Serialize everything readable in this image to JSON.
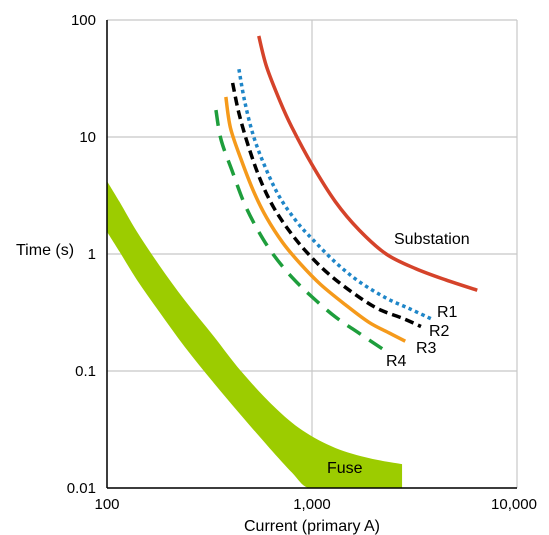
{
  "chart_data": {
    "type": "line",
    "title": "",
    "xlabel": "Current (primary A)",
    "ylabel": "Time (s)",
    "xscale": "log",
    "yscale": "log",
    "xlim": [
      100,
      10000
    ],
    "ylim": [
      0.01,
      100
    ],
    "xticks": [
      "100",
      "1,000",
      "10,000"
    ],
    "yticks": [
      "100",
      "10",
      "1",
      "0.1",
      "0.01"
    ],
    "grid": true,
    "series": [
      {
        "name": "Substation",
        "color": "#d5432a",
        "style": "solid",
        "x": [
          550,
          600,
          700,
          800,
          1000,
          1300,
          1700,
          2300,
          3200,
          4500,
          6400
        ],
        "y": [
          73,
          40,
          20,
          12,
          5.8,
          2.8,
          1.6,
          1.0,
          0.75,
          0.6,
          0.49
        ]
      },
      {
        "name": "R1",
        "color": "#1f86c8",
        "style": "dotted",
        "x": [
          440,
          470,
          520,
          600,
          700,
          850,
          1000,
          1300,
          1700,
          2300,
          3000,
          3800
        ],
        "y": [
          38,
          20,
          10,
          5.2,
          3.0,
          1.85,
          1.35,
          0.85,
          0.58,
          0.42,
          0.34,
          0.28
        ]
      },
      {
        "name": "R2",
        "color": "#000000",
        "style": "dashed",
        "x": [
          410,
          440,
          490,
          560,
          650,
          780,
          950,
          1200,
          1600,
          2100,
          2800,
          3400
        ],
        "y": [
          29,
          16,
          8.3,
          4.3,
          2.5,
          1.55,
          1.02,
          0.68,
          0.46,
          0.34,
          0.28,
          0.24
        ]
      },
      {
        "name": "R3",
        "color": "#f59a1b",
        "style": "solid",
        "x": [
          380,
          400,
          450,
          520,
          600,
          720,
          880,
          1100,
          1450,
          1900,
          2400,
          2850
        ],
        "y": [
          22,
          12,
          6.5,
          3.4,
          2.05,
          1.25,
          0.82,
          0.55,
          0.37,
          0.26,
          0.21,
          0.18
        ]
      },
      {
        "name": "R4",
        "color": "#1e9e3c",
        "style": "long-dash",
        "x": [
          340,
          360,
          410,
          470,
          550,
          650,
          800,
          1000,
          1300,
          1700,
          2200
        ],
        "y": [
          17,
          9.5,
          5.0,
          2.65,
          1.55,
          0.98,
          0.63,
          0.43,
          0.29,
          0.21,
          0.155
        ]
      }
    ],
    "band": {
      "name": "Fuse",
      "color": "#9ccc00",
      "upper": {
        "x": [
          100,
          115,
          140,
          180,
          240,
          330,
          450,
          650,
          900,
          1300,
          1900,
          2750
        ],
        "y": [
          4.2,
          2.8,
          1.55,
          0.8,
          0.4,
          0.2,
          0.1,
          0.05,
          0.031,
          0.022,
          0.018,
          0.016
        ]
      },
      "lower": {
        "x": [
          100,
          115,
          140,
          180,
          240,
          330,
          450,
          620,
          800,
          960,
          1300,
          1900,
          2750
        ],
        "y": [
          1.55,
          1.05,
          0.6,
          0.32,
          0.16,
          0.08,
          0.042,
          0.022,
          0.0135,
          0.01,
          0.01,
          0.01,
          0.01
        ]
      }
    }
  }
}
